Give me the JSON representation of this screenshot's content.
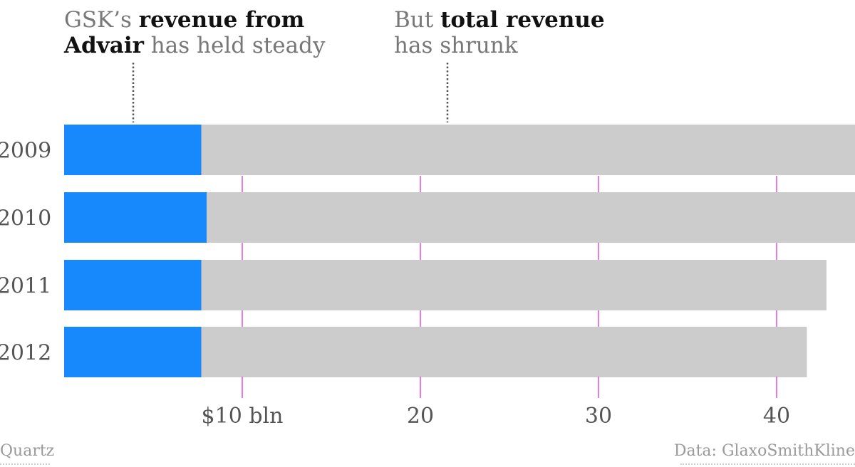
{
  "annotations": {
    "advair": {
      "pre": "GSK’s ",
      "bold": "revenue from",
      "bold2": "Advair",
      "post": " has held steady"
    },
    "total": {
      "pre": "But ",
      "bold": "total revenue",
      "post": "has shrunk"
    }
  },
  "footer": {
    "source_left": "Quartz",
    "source_right": "Data: GlaxoSmithKline"
  },
  "colors": {
    "advair": "#1789fc",
    "total": "#cccccc",
    "grid": "#e44fd0",
    "text": "#555555"
  },
  "chart_data": {
    "type": "bar",
    "orientation": "horizontal",
    "stacked": true,
    "categories": [
      "2009",
      "2010",
      "2011",
      "2012"
    ],
    "series": [
      {
        "values": [
          7.7,
          8.0,
          7.7,
          7.7
        ]
      },
      {
        "values": [
          36.7,
          36.4,
          35.1,
          34.0
        ]
      }
    ],
    "totals": [
      44.4,
      44.4,
      42.8,
      41.7
    ],
    "x_ticks": [
      10,
      20,
      30,
      40
    ],
    "x_tick_labels": [
      "$10 bln",
      "20",
      "30",
      "40"
    ],
    "xlim": [
      0,
      44.4
    ],
    "grid": true
  }
}
